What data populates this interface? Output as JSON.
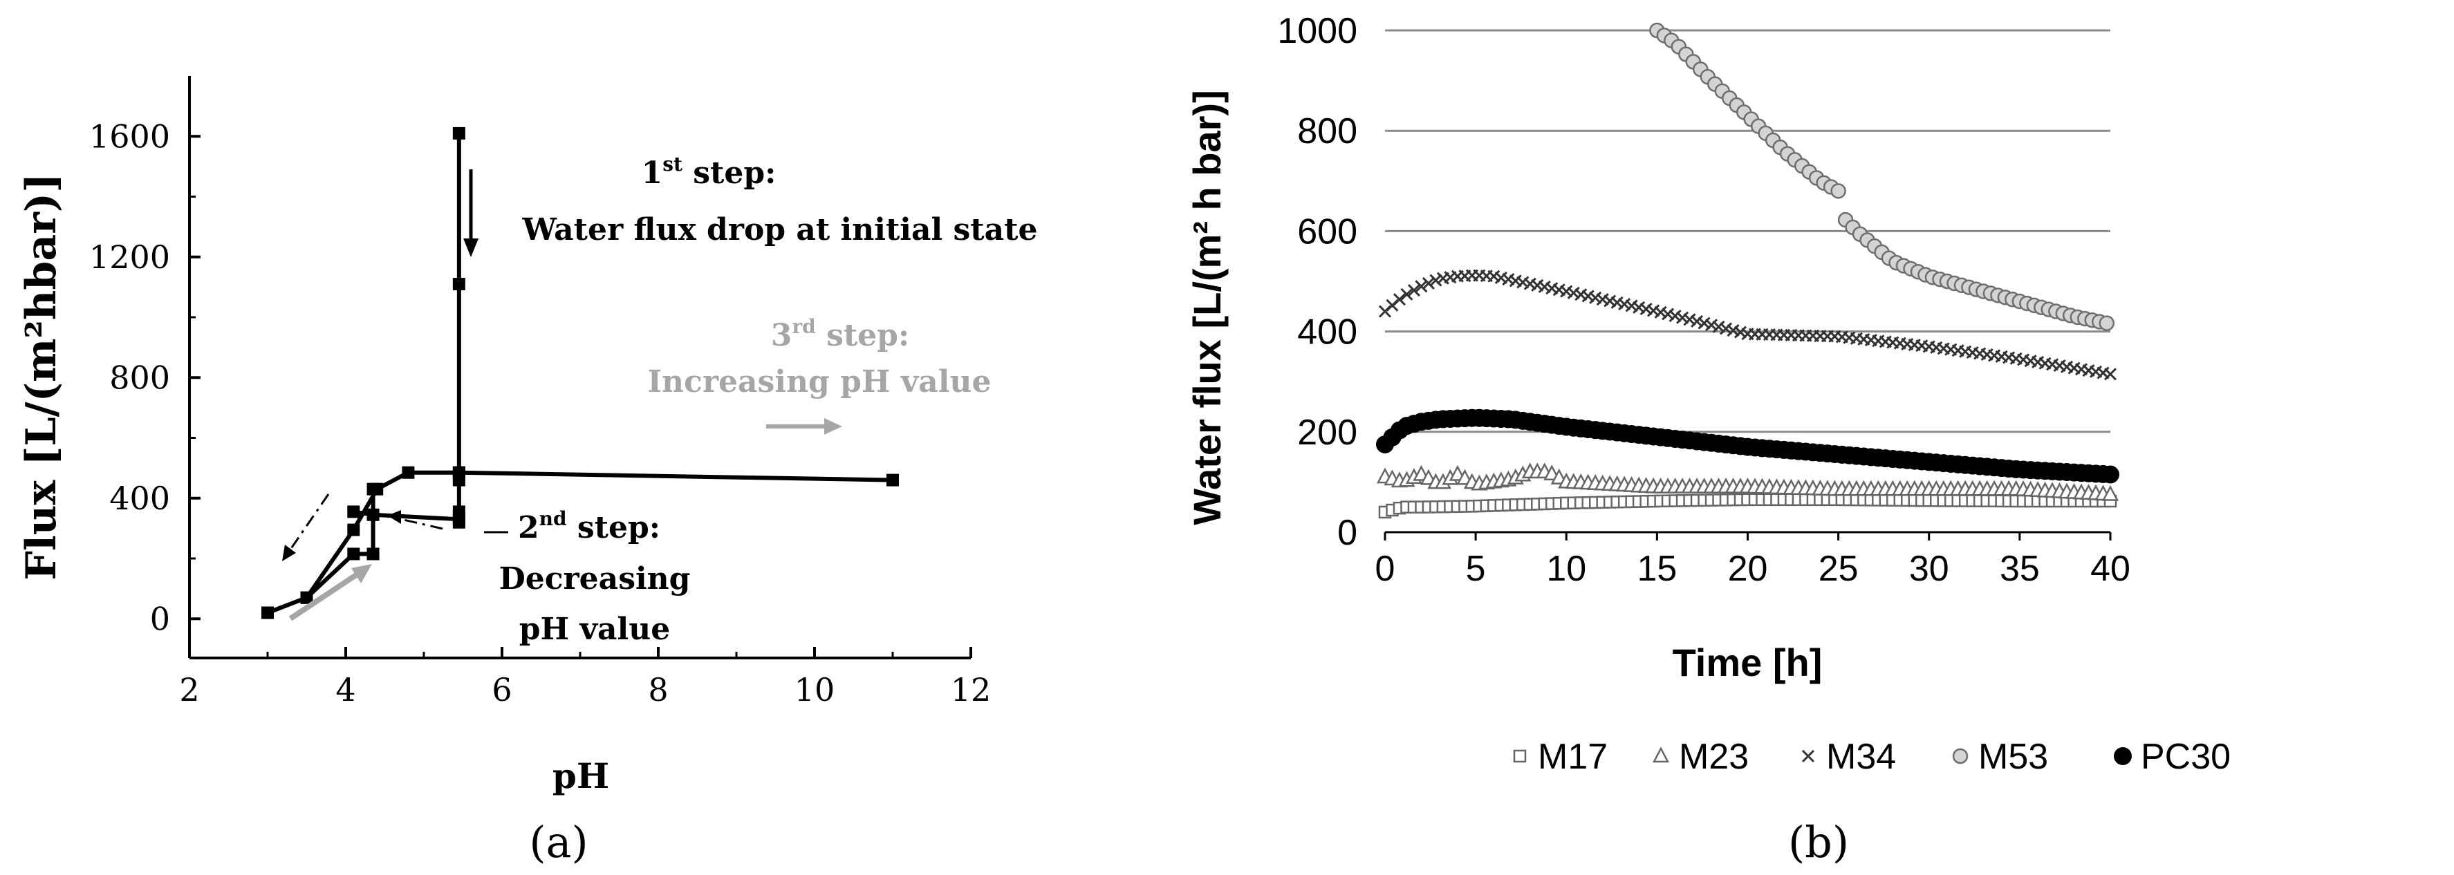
{
  "chart_data": [
    {
      "type": "line",
      "panel_label": "(a)",
      "xlabel": "pH",
      "ylabel": "Flux [L/(m²hbar)]",
      "xlim": [
        2,
        12
      ],
      "ylim": [
        -130,
        1800
      ],
      "x_ticks": [
        "2",
        "4",
        "6",
        "8",
        "10",
        "12"
      ],
      "y_ticks": [
        "0",
        "400",
        "800",
        "1200",
        "1600"
      ],
      "x_tick_values": [
        2,
        4,
        6,
        8,
        10,
        12
      ],
      "y_tick_values": [
        0,
        400,
        800,
        1200,
        1600
      ],
      "grid": false,
      "series": [
        {
          "points": [
            [
              5.45,
              1610
            ],
            [
              5.45,
              1110
            ],
            [
              5.45,
              460
            ],
            [
              5.45,
              355
            ],
            [
              5.45,
              320
            ]
          ]
        },
        {
          "points": [
            [
              5.45,
              485
            ],
            [
              4.8,
              485
            ],
            [
              4.4,
              430
            ],
            [
              4.1,
              295
            ],
            [
              3.5,
              70
            ],
            [
              3.0,
              20
            ]
          ]
        },
        {
          "points": [
            [
              5.45,
              485
            ],
            [
              11.0,
              460
            ]
          ]
        },
        {
          "points": [
            [
              4.1,
              355
            ],
            [
              4.35,
              345
            ],
            [
              5.45,
              330
            ]
          ]
        },
        {
          "points": [
            [
              3.0,
              20
            ],
            [
              3.5,
              70
            ],
            [
              4.1,
              215
            ],
            [
              4.35,
              215
            ]
          ]
        },
        {
          "points": [
            [
              4.35,
              215
            ],
            [
              4.35,
              430
            ]
          ]
        }
      ],
      "annotations": {
        "step1": {
          "line1": "1",
          "sup": "st",
          "line1b": " step:",
          "line2": "Water flux drop at initial state",
          "color": "#000000"
        },
        "step2": {
          "line1": "2",
          "sup": "nd",
          "line1b": " step:",
          "line2": "Decreasing",
          "line3": "pH value",
          "color": "#000000"
        },
        "step3": {
          "line1": "3",
          "sup": "rd",
          "line1b": " step:",
          "line2": "Increasing pH value",
          "color": "#a6a6a6"
        }
      }
    },
    {
      "type": "scatter",
      "panel_label": "(b)",
      "xlabel": "Time [h]",
      "ylabel": "Water flux [L/(m² h bar)]",
      "xlim": [
        0,
        40
      ],
      "ylim": [
        0,
        1000
      ],
      "x_ticks": [
        "0",
        "5",
        "10",
        "15",
        "20",
        "25",
        "30",
        "35",
        "40"
      ],
      "y_ticks": [
        "0",
        "200",
        "400",
        "600",
        "800",
        "1000"
      ],
      "x_tick_values": [
        0,
        5,
        10,
        15,
        20,
        25,
        30,
        35,
        40
      ],
      "y_tick_values": [
        0,
        200,
        400,
        600,
        800,
        1000
      ],
      "grid": true,
      "legend_position": "bottom",
      "series": [
        {
          "name": "M17",
          "marker": "square-open",
          "color": "#666666",
          "x": [
            0,
            1,
            2,
            5,
            10,
            15,
            20,
            25,
            30,
            35,
            40
          ],
          "values": [
            40,
            50,
            50,
            52,
            58,
            62,
            65,
            65,
            63,
            62,
            62
          ]
        },
        {
          "name": "M23",
          "marker": "triangle-open",
          "color": "#666666",
          "x": [
            0,
            1,
            2,
            3,
            4,
            5,
            6,
            7,
            8,
            9,
            10,
            15,
            20,
            25,
            30,
            35,
            40
          ],
          "values": [
            110,
            100,
            115,
            95,
            115,
            95,
            100,
            105,
            120,
            120,
            100,
            90,
            90,
            85,
            85,
            85,
            75
          ]
        },
        {
          "name": "M34",
          "marker": "x",
          "color": "#333333",
          "x": [
            0,
            1,
            2,
            3,
            4,
            5,
            6,
            8,
            10,
            15,
            20,
            25,
            30,
            35,
            40
          ],
          "values": [
            440,
            470,
            490,
            505,
            510,
            512,
            510,
            495,
            480,
            440,
            395,
            390,
            370,
            345,
            315
          ]
        },
        {
          "name": "M53",
          "marker": "circle-gray",
          "color": "#b4b4b4",
          "x": [
            15,
            16,
            18,
            20,
            22,
            24,
            25,
            25.2,
            26,
            28,
            30,
            32,
            34,
            36,
            38,
            40
          ],
          "values": [
            1000,
            975,
            900,
            830,
            760,
            700,
            680,
            630,
            600,
            540,
            510,
            490,
            470,
            450,
            430,
            415
          ]
        },
        {
          "name": "PC30",
          "marker": "circle-filled",
          "color": "#000000",
          "x": [
            0,
            1,
            2,
            3,
            5,
            7,
            10,
            15,
            20,
            25,
            30,
            35,
            40
          ],
          "values": [
            175,
            210,
            220,
            225,
            228,
            225,
            210,
            190,
            170,
            155,
            140,
            125,
            115
          ]
        }
      ]
    }
  ]
}
